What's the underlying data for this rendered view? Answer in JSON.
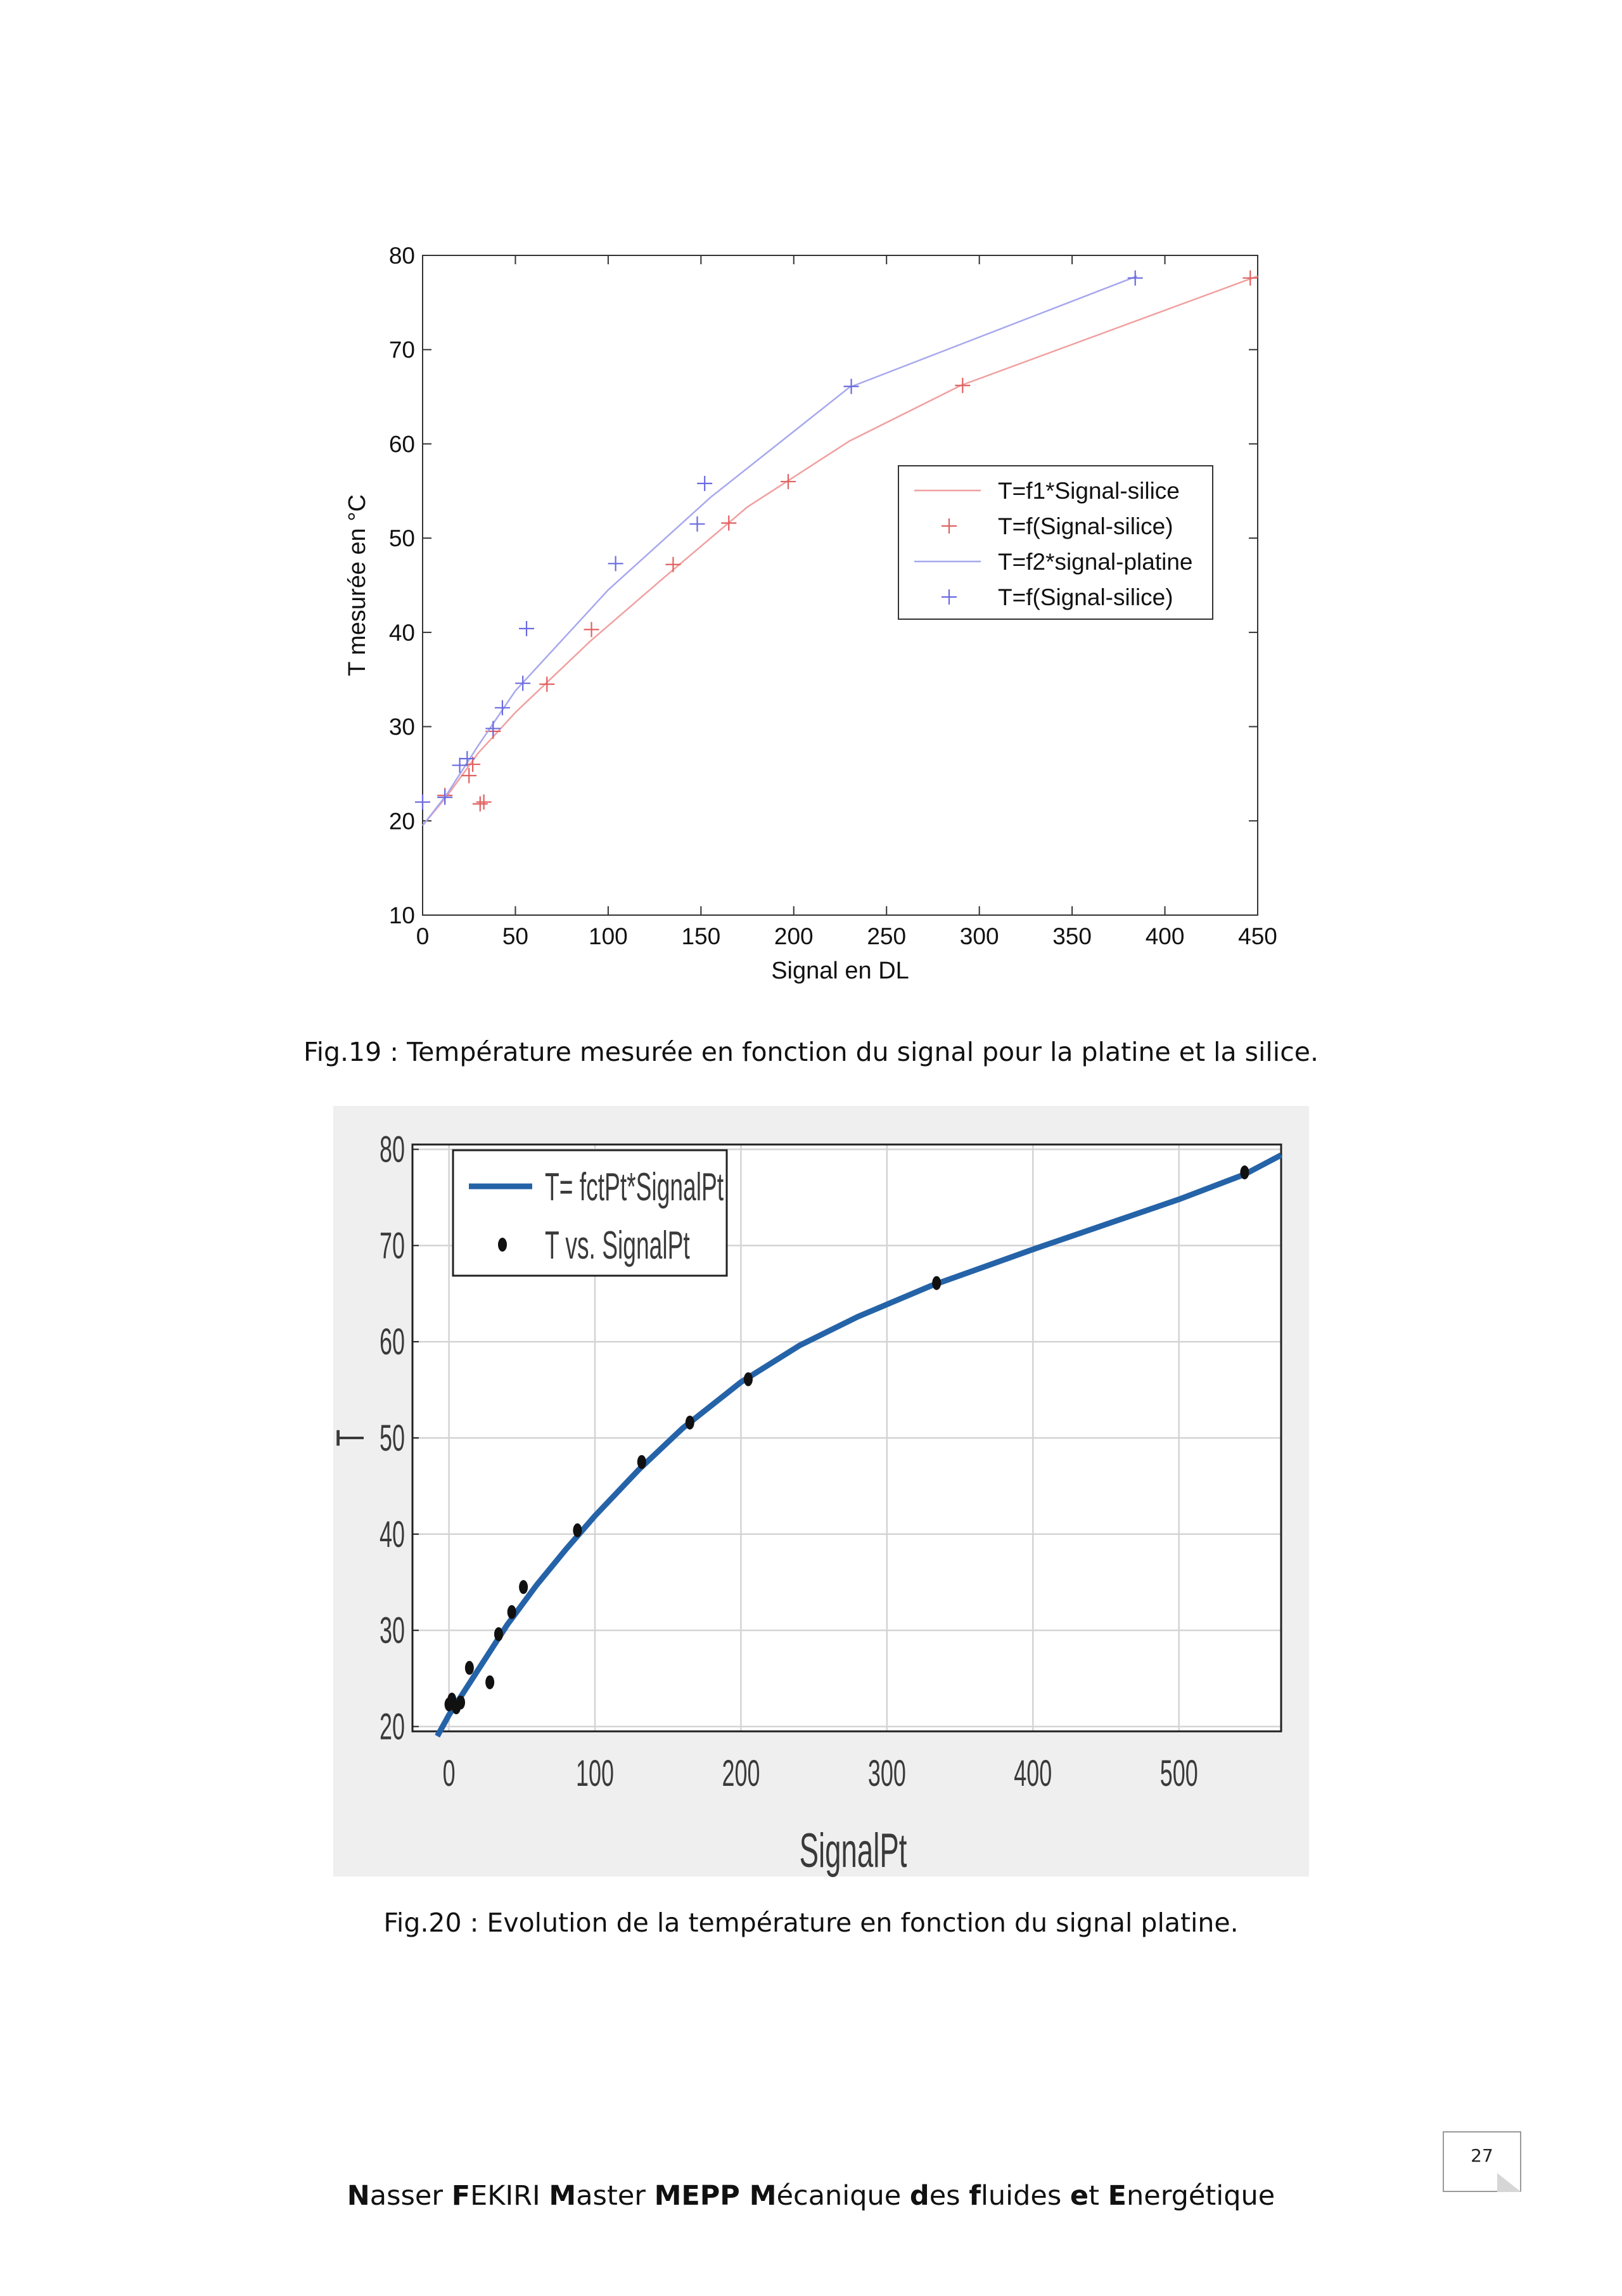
{
  "chart_data": [
    {
      "type": "line",
      "xlabel": "Signal en DL",
      "ylabel": "T mesurée en °C",
      "xlim": [
        0,
        450
      ],
      "ylim": [
        10,
        80
      ],
      "xticks": [
        0,
        50,
        100,
        150,
        200,
        250,
        300,
        350,
        400,
        450
      ],
      "yticks": [
        10,
        20,
        30,
        40,
        50,
        60,
        70,
        80
      ],
      "grid": false,
      "legend_position": "center-right",
      "series": [
        {
          "name": "T=f1*Signal-silice",
          "kind": "line",
          "color": "#f0a0a0",
          "x": [
            0,
            13,
            30,
            50,
            90,
            130,
            175,
            230,
            290,
            450
          ],
          "y": [
            19.5,
            22.6,
            27.2,
            31.5,
            39.0,
            45.8,
            53.3,
            60.3,
            66.2,
            77.8
          ]
        },
        {
          "name": "T=f(Signal-silice)",
          "kind": "marker",
          "color": "#e06060",
          "x": [
            0,
            12,
            25,
            27,
            31,
            33,
            38,
            67,
            91,
            135,
            165,
            197,
            291,
            446
          ],
          "y": [
            22.0,
            22.7,
            24.8,
            26.0,
            21.8,
            22.0,
            29.5,
            34.5,
            40.3,
            47.2,
            51.6,
            56.0,
            66.2,
            77.6
          ]
        },
        {
          "name": "T=f2*signal-platine",
          "kind": "line",
          "color": "#a8a8ee",
          "x": [
            0,
            13,
            30,
            50,
            100,
            155,
            230,
            385
          ],
          "y": [
            19.5,
            22.8,
            28.0,
            33.8,
            44.5,
            54.3,
            66.0,
            77.8
          ]
        },
        {
          "name": "T=f(Signal-silice)",
          "kind": "marker",
          "color": "#6a6ae0",
          "x": [
            0,
            12,
            20,
            24,
            38,
            43,
            54,
            56,
            104,
            148,
            152,
            231,
            384
          ],
          "y": [
            22.0,
            22.5,
            25.9,
            26.6,
            29.8,
            32.0,
            34.6,
            40.4,
            47.3,
            51.5,
            55.8,
            66.1,
            77.6
          ]
        }
      ]
    },
    {
      "type": "line",
      "xlabel": "SignalPt",
      "ylabel": "T",
      "xlim": [
        -25,
        570
      ],
      "ylim": [
        19.5,
        80.5
      ],
      "xticks": [
        0,
        100,
        200,
        300,
        400,
        500
      ],
      "yticks": [
        20,
        30,
        40,
        50,
        60,
        70,
        80
      ],
      "grid": true,
      "legend_position": "top-left",
      "series": [
        {
          "name": "T= fctPt*SignalPt",
          "kind": "line",
          "color": "#2563a8",
          "x": [
            -8,
            0,
            20,
            40,
            60,
            80,
            100,
            130,
            160,
            200,
            240,
            280,
            330,
            400,
            450,
            500,
            545,
            570
          ],
          "y": [
            19.0,
            21.2,
            25.9,
            30.6,
            34.7,
            38.4,
            41.9,
            46.7,
            51.0,
            55.8,
            59.6,
            62.6,
            65.8,
            69.6,
            72.2,
            74.8,
            77.4,
            79.4
          ]
        },
        {
          "name": "T vs. SignalPt",
          "kind": "marker",
          "color": "#111111",
          "x": [
            0,
            2,
            5,
            8,
            14,
            28,
            34,
            43,
            51,
            88,
            132,
            165,
            205,
            334,
            545
          ],
          "y": [
            22.3,
            22.8,
            22.0,
            22.5,
            26.1,
            24.6,
            29.6,
            31.9,
            34.5,
            40.4,
            47.5,
            51.6,
            56.1,
            66.1,
            77.6
          ]
        }
      ]
    }
  ],
  "captions": {
    "fig19": "Fig.19 : Température mesurée en fonction du signal pour la platine et la silice.",
    "fig20": "Fig.20 : Evolution de la température en fonction du signal platine."
  },
  "page_number": "27",
  "footer": {
    "parts": [
      {
        "b": "N",
        "t": "asser "
      },
      {
        "b": "F",
        "t": "EKIRI "
      },
      {
        "b": "M",
        "t": "aster "
      },
      {
        "b": "MEPP ",
        "t": ""
      },
      {
        "b": "M",
        "t": "écanique "
      },
      {
        "b": "d",
        "t": "es "
      },
      {
        "b": "f",
        "t": "luides "
      },
      {
        "b": "e",
        "t": "t "
      },
      {
        "b": "E",
        "t": "nergétique"
      }
    ]
  }
}
